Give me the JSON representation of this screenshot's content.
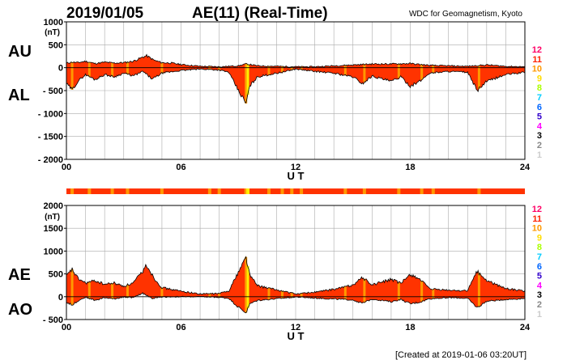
{
  "header": {
    "date": "2019/01/05",
    "title": "AE(11) (Real-Time)",
    "source": "WDC for Geomagnetism, Kyoto"
  },
  "footer": {
    "created": "[Created at 2019-01-06 03:20UT]"
  },
  "colors": {
    "fill": "#ff3300",
    "stations_low": "#ff9900",
    "stations_mid": "#ffee00",
    "line": "#000000",
    "grid": "#aaaaaa"
  },
  "chart_data": [
    {
      "type": "area",
      "panel": "top",
      "title": "AU / AL",
      "series": [
        {
          "name": "AU",
          "label": "AU",
          "hours": [
            0,
            0.3,
            0.6,
            1,
            1.5,
            2,
            2.5,
            3,
            3.5,
            4,
            4.2,
            4.6,
            5,
            5.5,
            6,
            7,
            8,
            8.5,
            9,
            9.4,
            9.6,
            10,
            11,
            12,
            13,
            14,
            15,
            16,
            17,
            18,
            19,
            20,
            21,
            22,
            23,
            24
          ],
          "values": [
            100,
            120,
            110,
            140,
            90,
            120,
            100,
            110,
            140,
            230,
            260,
            160,
            110,
            100,
            70,
            30,
            20,
            30,
            40,
            80,
            70,
            40,
            30,
            20,
            20,
            40,
            60,
            80,
            80,
            90,
            50,
            40,
            30,
            60,
            30,
            20
          ]
        },
        {
          "name": "AL",
          "label": "AL",
          "hours": [
            0,
            0.3,
            0.6,
            1,
            1.5,
            2,
            2.5,
            3,
            3.5,
            4,
            4.5,
            5,
            6,
            7,
            8,
            8.5,
            9,
            9.4,
            9.6,
            10,
            11,
            11.5,
            12,
            13,
            14,
            15,
            15.5,
            16,
            17,
            17.5,
            18,
            18.5,
            19,
            20,
            21,
            21.5,
            22,
            23,
            24
          ],
          "values": [
            -350,
            -480,
            -300,
            -150,
            -260,
            -150,
            -200,
            -120,
            -180,
            -80,
            -250,
            -120,
            -60,
            -30,
            -50,
            -100,
            -500,
            -780,
            -400,
            -200,
            -120,
            -80,
            -30,
            -80,
            -120,
            -200,
            -350,
            -180,
            -300,
            -200,
            -400,
            -300,
            -120,
            -80,
            -100,
            -500,
            -300,
            -150,
            -100
          ]
        }
      ],
      "ylim": [
        -2000,
        1000
      ],
      "yticks": [
        "1000",
        "500",
        "0",
        "- 500",
        "- 1000",
        "- 1500",
        "- 2000"
      ],
      "ytick_values": [
        1000,
        500,
        0,
        -500,
        -1000,
        -1500,
        -2000
      ],
      "yunit": "(nT)",
      "xlim": [
        0,
        24
      ],
      "xticks": [
        "00",
        "06",
        "12",
        "18",
        "24"
      ],
      "xtick_values": [
        0,
        6,
        12,
        18,
        24
      ],
      "xlabel": "U T",
      "station_scale": [
        {
          "label": "12",
          "color": "#ff0066"
        },
        {
          "label": "11",
          "color": "#ff2200"
        },
        {
          "label": "10",
          "color": "#ff9900"
        },
        {
          "label": "9",
          "color": "#ffdd00"
        },
        {
          "label": "8",
          "color": "#aaff00"
        },
        {
          "label": "7",
          "color": "#00ccff"
        },
        {
          "label": "6",
          "color": "#0066ff"
        },
        {
          "label": "5",
          "color": "#3300cc"
        },
        {
          "label": "4",
          "color": "#ff00ff"
        },
        {
          "label": "3",
          "color": "#000000"
        },
        {
          "label": "2",
          "color": "#888888"
        },
        {
          "label": "1",
          "color": "#cccccc"
        }
      ]
    },
    {
      "type": "area",
      "panel": "bottom",
      "title": "AE / AO",
      "series": [
        {
          "name": "AE",
          "label": "AE",
          "hours": [
            0,
            0.3,
            0.6,
            1,
            1.5,
            2,
            2.5,
            3,
            3.5,
            4,
            4.2,
            4.6,
            5,
            6,
            7,
            8,
            8.5,
            9,
            9.4,
            9.6,
            10,
            11,
            12,
            13,
            14,
            15,
            15.5,
            16,
            17,
            17.5,
            18,
            18.5,
            19,
            20,
            21,
            21.5,
            22,
            23,
            24
          ],
          "values": [
            450,
            600,
            400,
            300,
            350,
            270,
            300,
            230,
            300,
            560,
            700,
            400,
            200,
            120,
            60,
            70,
            130,
            540,
            870,
            480,
            240,
            150,
            60,
            100,
            160,
            260,
            420,
            260,
            380,
            290,
            490,
            390,
            170,
            140,
            130,
            560,
            350,
            180,
            120
          ]
        },
        {
          "name": "AO",
          "label": "AO",
          "hours": [
            0,
            0.3,
            0.6,
            1,
            1.5,
            2,
            2.5,
            3,
            3.5,
            4,
            4.5,
            5,
            6,
            7,
            8,
            8.5,
            9,
            9.4,
            9.6,
            10,
            11,
            12,
            13,
            14,
            15,
            15.5,
            16,
            17,
            17.5,
            18,
            18.5,
            19,
            20,
            21,
            21.5,
            22,
            23,
            24
          ],
          "values": [
            -120,
            -180,
            -90,
            -10,
            -80,
            -20,
            -50,
            -5,
            -20,
            80,
            -40,
            -5,
            0,
            0,
            -15,
            -35,
            -230,
            -350,
            -160,
            -80,
            -45,
            -5,
            -30,
            -50,
            -70,
            -145,
            -50,
            -110,
            -60,
            -155,
            -120,
            -45,
            -20,
            -35,
            -240,
            -100,
            -60,
            -40
          ]
        }
      ],
      "ylim": [
        -500,
        2000
      ],
      "yticks": [
        "2000",
        "1500",
        "1000",
        "500",
        "0",
        "- 500"
      ],
      "ytick_values": [
        2000,
        1500,
        1000,
        500,
        0,
        -500
      ],
      "yunit": "(nT)",
      "xlim": [
        0,
        24
      ],
      "xticks": [
        "00",
        "06",
        "12",
        "18",
        "24"
      ],
      "xtick_values": [
        0,
        6,
        12,
        18,
        24
      ],
      "xlabel": "U T",
      "station_scale": [
        {
          "label": "12",
          "color": "#ff0066"
        },
        {
          "label": "11",
          "color": "#ff2200"
        },
        {
          "label": "10",
          "color": "#ff9900"
        },
        {
          "label": "9",
          "color": "#ffdd00"
        },
        {
          "label": "8",
          "color": "#aaff00"
        },
        {
          "label": "7",
          "color": "#00ccff"
        },
        {
          "label": "6",
          "color": "#0066ff"
        },
        {
          "label": "5",
          "color": "#3300cc"
        },
        {
          "label": "4",
          "color": "#ff00ff"
        },
        {
          "label": "3",
          "color": "#000000"
        },
        {
          "label": "2",
          "color": "#888888"
        },
        {
          "label": "1",
          "color": "#cccccc"
        }
      ]
    }
  ],
  "station_bar": {
    "hours_10_stations": [
      0.3,
      1.2,
      2.4,
      3.2,
      5.0,
      7.5,
      8.0,
      9.4,
      10.6,
      11.3,
      11.8,
      12.3,
      14.6,
      15.6,
      17.4,
      18.6,
      19.2,
      21.6
    ],
    "hours_9_stations": [
      9.5
    ]
  }
}
